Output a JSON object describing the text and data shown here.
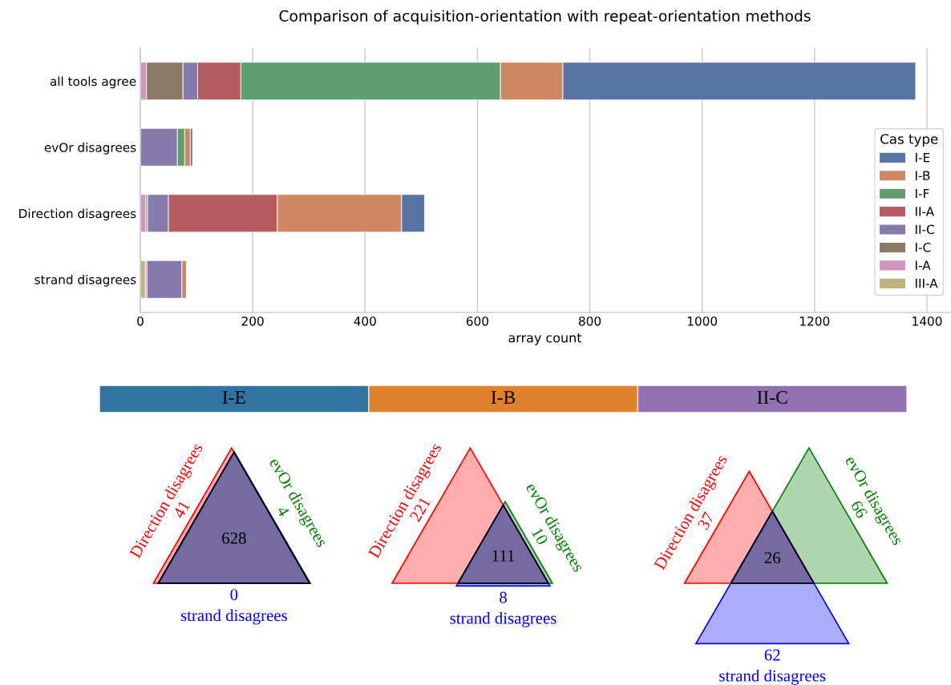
{
  "chart_data": [
    {
      "type": "bar",
      "title": "Comparison of acquisition-orientation with repeat-orientation methods",
      "xlabel": "array count",
      "orientation": "horizontal",
      "stacked": true,
      "categories": [
        "all tools agree",
        "evOr disagrees",
        "Direction disagrees",
        "strand disagrees"
      ],
      "series": [
        {
          "name": "III-A",
          "color": "#c1b37f",
          "values": [
            0,
            0,
            0,
            9
          ]
        },
        {
          "name": "I-A",
          "color": "#d095bf",
          "values": [
            11,
            0,
            10,
            3
          ]
        },
        {
          "name": "I-C",
          "color": "#8d7866",
          "values": [
            65,
            0,
            3,
            0
          ]
        },
        {
          "name": "II-C",
          "color": "#857aab",
          "values": [
            26,
            66,
            37,
            62
          ]
        },
        {
          "name": "II-A",
          "color": "#b55d60",
          "values": [
            77,
            0,
            194,
            0
          ]
        },
        {
          "name": "I-F",
          "color": "#5f9e6e",
          "values": [
            462,
            13,
            0,
            0
          ]
        },
        {
          "name": "I-B",
          "color": "#cc8963",
          "values": [
            111,
            10,
            221,
            8
          ]
        },
        {
          "name": "I-E",
          "color": "#5975a4",
          "values": [
            628,
            4,
            41,
            0
          ]
        }
      ],
      "xlim": [
        0,
        1440
      ],
      "xticks": [
        0,
        200,
        400,
        600,
        800,
        1000,
        1200,
        1400
      ],
      "grid": "x",
      "legend": "right",
      "legend_title": "Cas type"
    },
    {
      "type": "other",
      "title": "I-E",
      "color": "#3274a1",
      "categories": [
        "Direction disagrees",
        "evOr disagrees",
        "strand disagrees"
      ],
      "values": [
        41,
        4,
        0
      ],
      "colors": [
        "#ff0000",
        "#008000",
        "#0000ff"
      ],
      "data_labels": true,
      "annotations": [
        "628"
      ]
    },
    {
      "type": "other",
      "title": "I-B",
      "color": "#e1812c",
      "categories": [
        "Direction disagrees",
        "evOr disagrees",
        "strand disagrees"
      ],
      "values": [
        221,
        10,
        8
      ],
      "colors": [
        "#ff0000",
        "#008000",
        "#0000ff"
      ],
      "data_labels": true,
      "annotations": [
        "111"
      ]
    },
    {
      "type": "other",
      "title": "II-C",
      "color": "#9372b2",
      "categories": [
        "Direction disagrees",
        "evOr disagrees",
        "strand disagrees"
      ],
      "values": [
        37,
        66,
        62
      ],
      "colors": [
        "#ff0000",
        "#008000",
        "#0000ff"
      ],
      "data_labels": true,
      "annotations": [
        "26"
      ]
    }
  ]
}
